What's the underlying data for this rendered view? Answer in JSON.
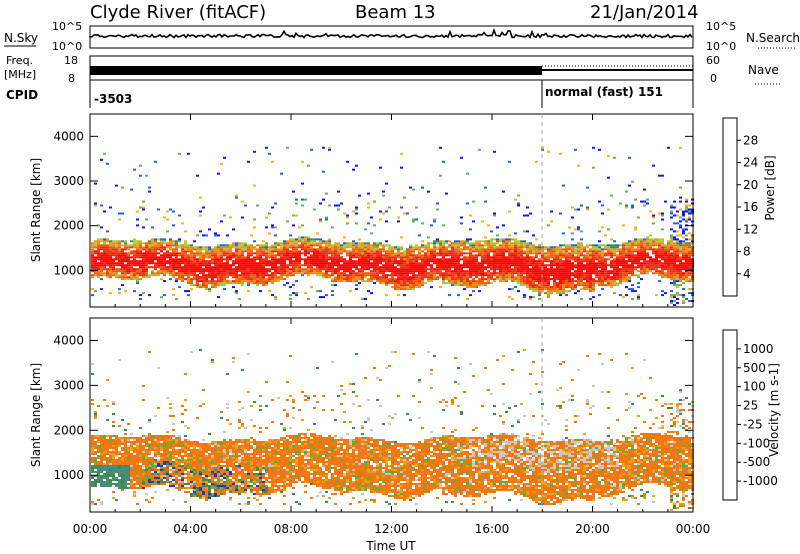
{
  "header": {
    "station": "Clyde River (fitACF)",
    "beam": "Beam 13",
    "date": "21/Jan/2014"
  },
  "noise_panel": {
    "left_label": "N.Sky",
    "right_label": "N.Search",
    "left_ticks": [
      "10^5",
      "10^0"
    ],
    "right_ticks": [
      "10^5",
      "10^0"
    ]
  },
  "freq_panel": {
    "left_label_1": "Freq.",
    "left_label_2": "[MHz]",
    "right_label": "Nave",
    "left_ticks": [
      "18",
      "8"
    ],
    "right_ticks": [
      "60",
      "0"
    ]
  },
  "cpid_panel": {
    "label": "CPID",
    "segments": [
      {
        "start_hour": 0,
        "text": "-3503"
      },
      {
        "start_hour": 18,
        "text": "normal (fast) 151"
      }
    ]
  },
  "chart_data": [
    {
      "type": "heatmap",
      "quantity": "Power",
      "ylabel": "Slant Range [km]",
      "colorbar_label": "Power [dB]",
      "ylim": [
        180,
        4500
      ],
      "yticks": [
        "1000",
        "2000",
        "3000",
        "4000"
      ],
      "colorbar_ticks": [
        "28",
        "24",
        "20",
        "16",
        "12",
        "8",
        "4"
      ],
      "colorbar_colors": [
        "#1414ff",
        "#2864c8",
        "#3c8c50",
        "#64b45a",
        "#aac83c",
        "#f0b414",
        "#f08c0a",
        "#f05a0a",
        "#f02814",
        "#ff0000"
      ],
      "main_band_km": {
        "lower": 700,
        "upper": 1600
      },
      "description_values": "Strong echoes 20-28 dB in 700-1600 km band throughout the day"
    },
    {
      "type": "heatmap",
      "quantity": "Velocity",
      "ylabel": "Slant Range [km]",
      "colorbar_label": "Velocity [m s-1]",
      "ylim": [
        180,
        4500
      ],
      "yticks": [
        "1000",
        "2000",
        "3000",
        "4000"
      ],
      "colorbar_ticks": [
        "1000",
        "500",
        "100",
        "25",
        "-25",
        "-100",
        "-500",
        "-1000"
      ],
      "colorbar_colors": [
        "#1e3cb4",
        "#3c64c8",
        "#3c8c50",
        "#50b43c",
        "#c8c8c8",
        "#f0a014",
        "#f07814",
        "#f04614",
        "#ff1414"
      ],
      "main_band_km": {
        "lower": 600,
        "upper": 1800
      }
    }
  ],
  "x_axis": {
    "label": "Time UT",
    "ticks": [
      "00:00",
      "04:00",
      "08:00",
      "12:00",
      "16:00",
      "20:00",
      "00:00"
    ],
    "tick_hours": [
      0,
      4,
      8,
      12,
      16,
      20,
      24
    ]
  }
}
